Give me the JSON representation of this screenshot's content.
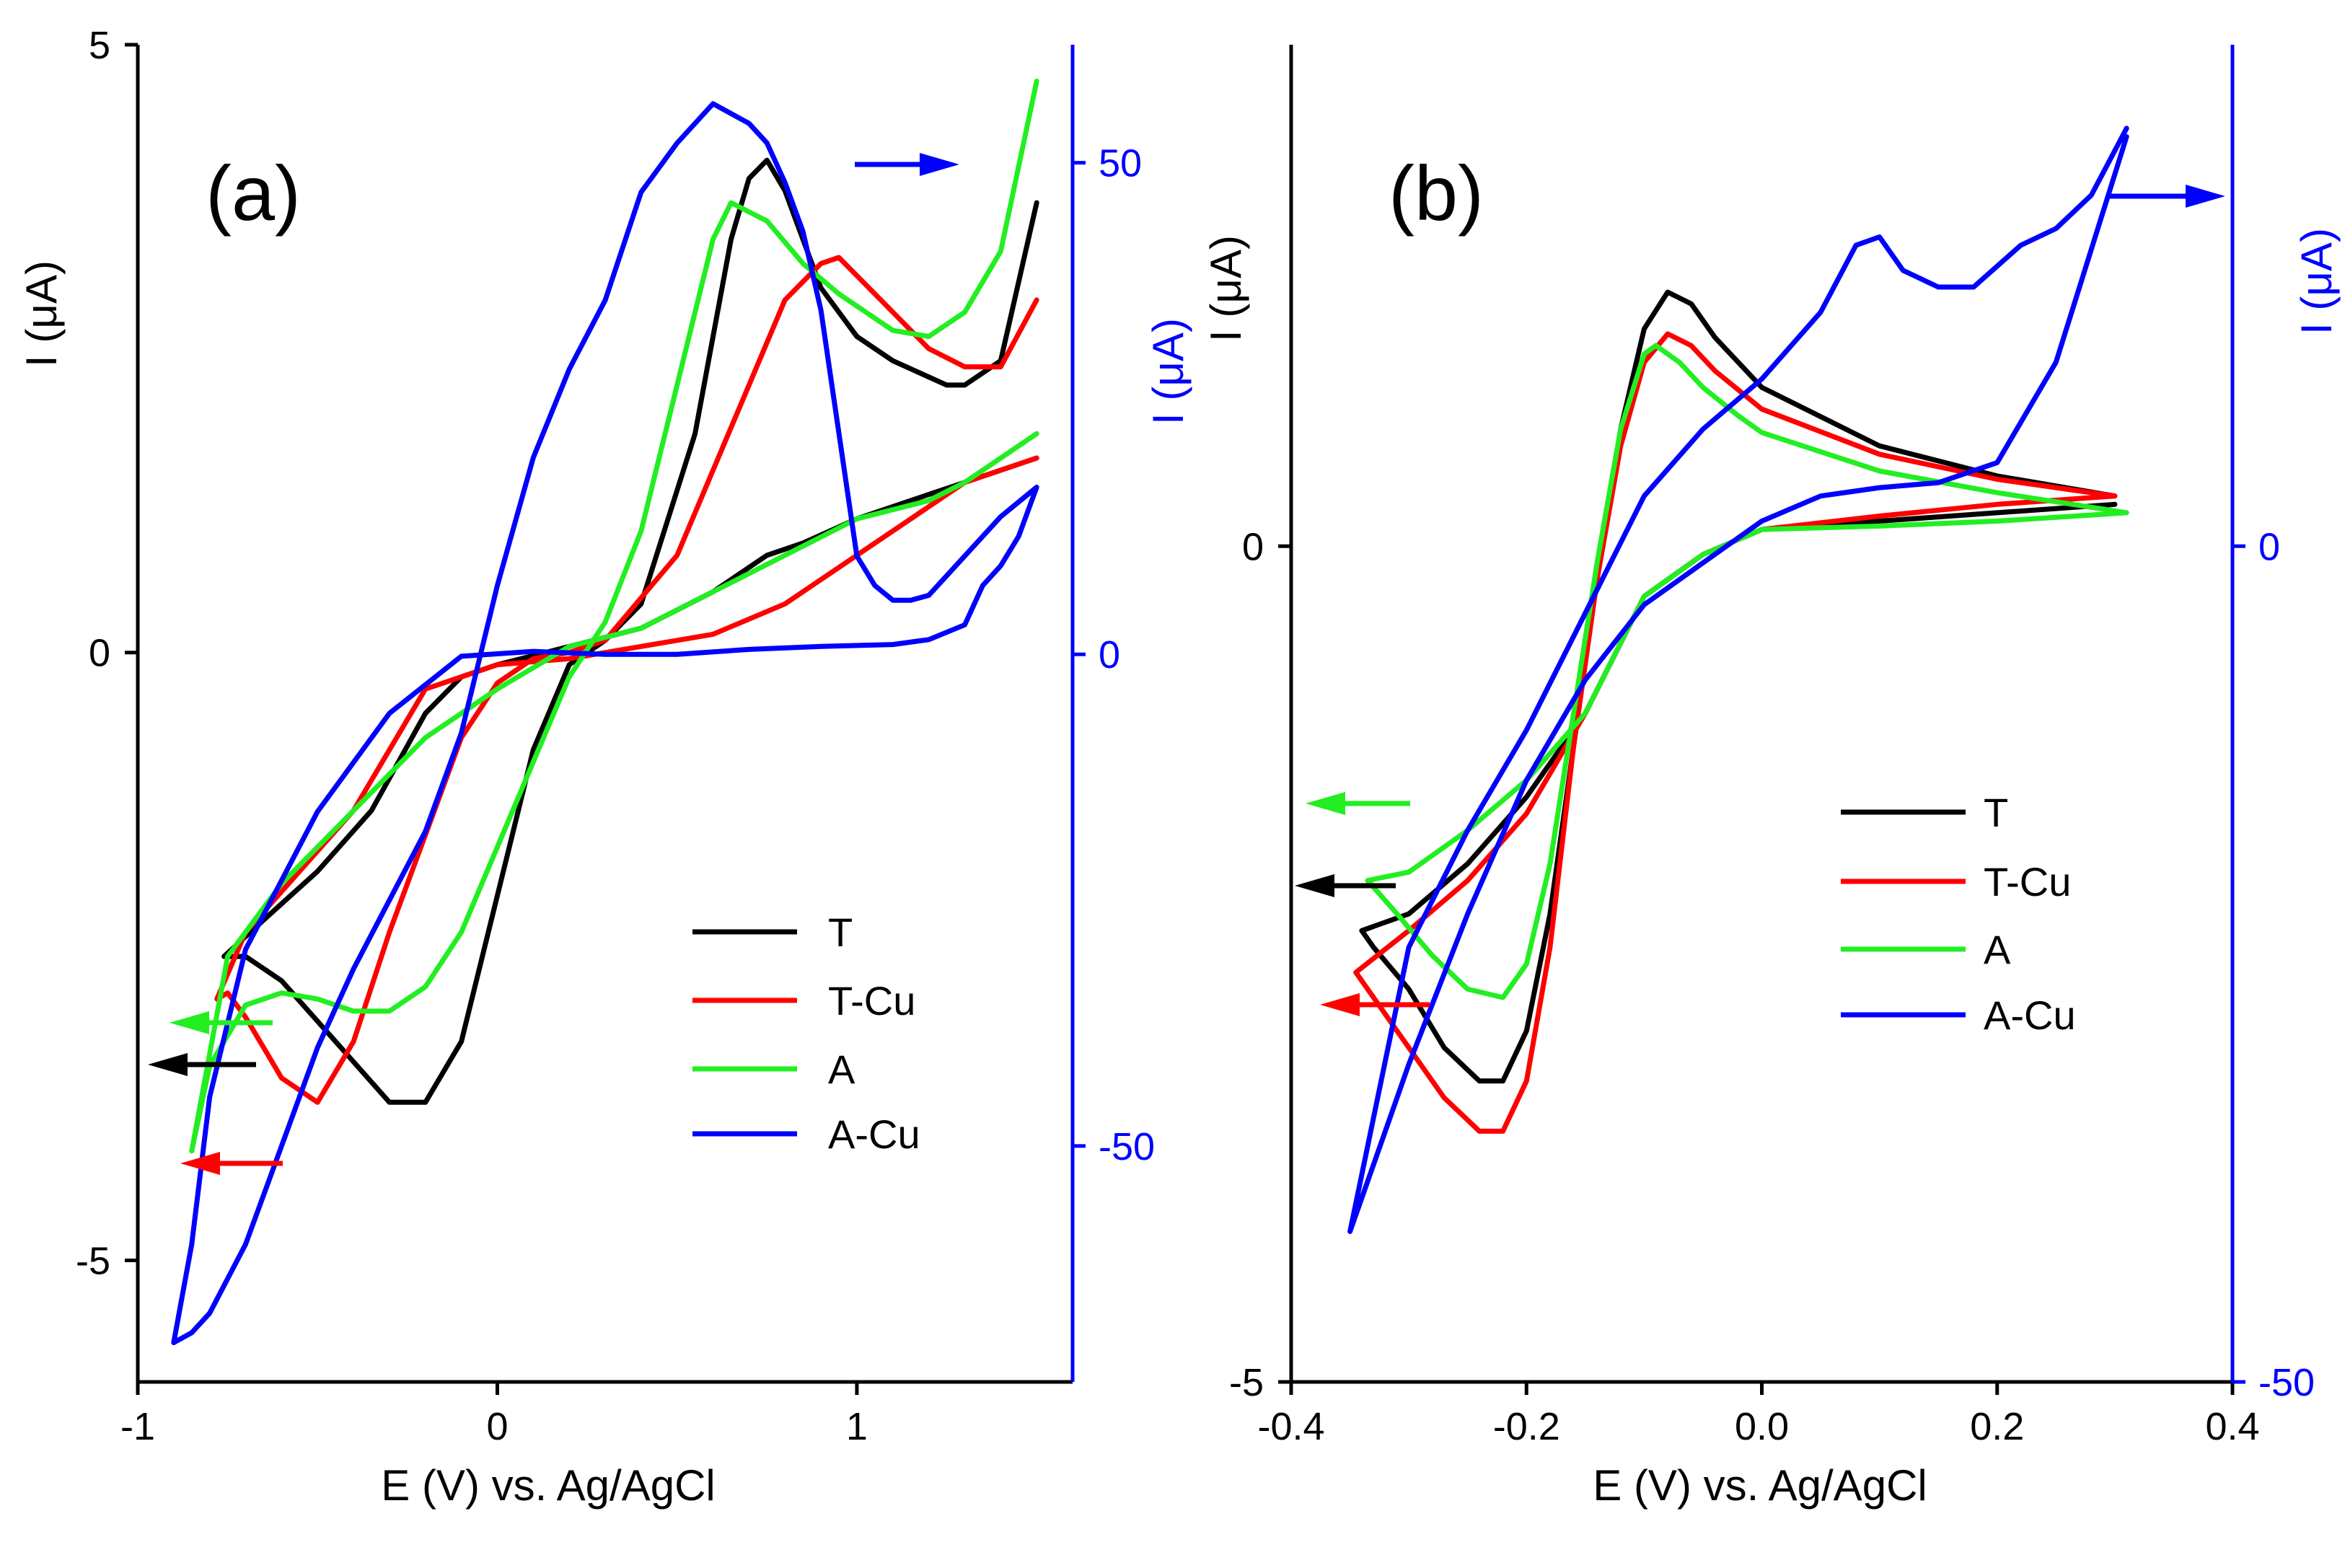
{
  "chart_data": [
    {
      "type": "line",
      "panel_label": "(a)",
      "xlabel": "E (V) vs. Ag/AgCl",
      "ylabel_left": "I (μA)",
      "ylabel_right": "I (μA)",
      "xlim": [
        -1,
        1.6
      ],
      "ylim_left": [
        -6,
        5
      ],
      "ylim_right": [
        -74,
        62
      ],
      "x_ticks": [
        -1,
        0,
        1
      ],
      "x_tick_labels": [
        "-1",
        "0",
        "1"
      ],
      "y_ticks_left": [
        -5,
        0,
        5
      ],
      "y_tick_labels_left": [
        "-5",
        "0",
        "5"
      ],
      "y_ticks_right": [
        -50,
        0,
        50
      ],
      "y_tick_labels_right": [
        "-50",
        "0",
        "50"
      ],
      "legend": [
        "T",
        "T-Cu",
        "A",
        "A-Cu"
      ],
      "series": [
        {
          "name": "T",
          "color": "#000000",
          "axis": "left",
          "x": [
            1.5,
            1.4,
            1.3,
            1.2,
            1.0,
            0.85,
            0.75,
            0.6,
            0.4,
            0.2,
            0.0,
            -0.1,
            -0.2,
            -0.35,
            -0.5,
            -0.65,
            -0.76,
            -0.7,
            -0.6,
            -0.45,
            -0.3,
            -0.2,
            -0.1,
            0.0,
            0.1,
            0.2,
            0.3,
            0.4,
            0.55,
            0.65,
            0.7,
            0.75,
            0.8,
            0.9,
            1.0,
            1.1,
            1.25,
            1.3,
            1.4,
            1.5
          ],
          "y": [
            1.6,
            1.5,
            1.4,
            1.3,
            1.1,
            0.9,
            0.8,
            0.5,
            0.2,
            0.05,
            -0.1,
            -0.2,
            -0.5,
            -1.3,
            -1.8,
            -2.2,
            -2.5,
            -2.5,
            -2.7,
            -3.2,
            -3.7,
            -3.7,
            -3.2,
            -2.0,
            -0.8,
            -0.1,
            0.1,
            0.4,
            1.8,
            3.4,
            3.9,
            4.05,
            3.8,
            3.0,
            2.6,
            2.4,
            2.2,
            2.2,
            2.4,
            3.7
          ]
        },
        {
          "name": "T-Cu",
          "color": "#ff0000",
          "axis": "left",
          "x": [
            1.5,
            1.4,
            1.3,
            1.2,
            1.0,
            0.8,
            0.6,
            0.4,
            0.2,
            0.0,
            -0.2,
            -0.4,
            -0.55,
            -0.7,
            -0.78,
            -0.75,
            -0.7,
            -0.6,
            -0.5,
            -0.4,
            -0.3,
            -0.2,
            -0.1,
            0.0,
            0.1,
            0.2,
            0.3,
            0.5,
            0.7,
            0.8,
            0.9,
            0.95,
            1.0,
            1.1,
            1.2,
            1.3,
            1.4,
            1.5
          ],
          "y": [
            1.6,
            1.5,
            1.4,
            1.2,
            0.8,
            0.4,
            0.15,
            0.05,
            -0.05,
            -0.1,
            -0.3,
            -1.3,
            -1.8,
            -2.3,
            -2.85,
            -2.8,
            -3.0,
            -3.5,
            -3.7,
            -3.2,
            -2.3,
            -1.5,
            -0.7,
            -0.25,
            -0.05,
            0.0,
            0.1,
            0.8,
            2.2,
            2.9,
            3.2,
            3.25,
            3.1,
            2.8,
            2.5,
            2.35,
            2.35,
            2.9
          ]
        },
        {
          "name": "A",
          "color": "#22ee22",
          "axis": "left",
          "x": [
            1.5,
            1.4,
            1.3,
            1.2,
            1.0,
            0.8,
            0.6,
            0.4,
            0.2,
            0.0,
            -0.2,
            -0.4,
            -0.6,
            -0.75,
            -0.85,
            -0.8,
            -0.7,
            -0.6,
            -0.5,
            -0.4,
            -0.3,
            -0.2,
            -0.1,
            0.0,
            0.1,
            0.2,
            0.3,
            0.4,
            0.5,
            0.6,
            0.65,
            0.75,
            0.85,
            0.95,
            1.1,
            1.2,
            1.3,
            1.4,
            1.5
          ],
          "y": [
            1.8,
            1.6,
            1.4,
            1.25,
            1.1,
            0.8,
            0.5,
            0.2,
            0.05,
            -0.3,
            -0.7,
            -1.3,
            -1.9,
            -2.5,
            -4.1,
            -3.4,
            -2.9,
            -2.8,
            -2.85,
            -2.95,
            -2.95,
            -2.75,
            -2.3,
            -1.6,
            -0.9,
            -0.2,
            0.25,
            1.0,
            2.2,
            3.4,
            3.7,
            3.55,
            3.2,
            2.95,
            2.65,
            2.6,
            2.8,
            3.3,
            4.7
          ]
        },
        {
          "name": "A-Cu",
          "color": "#0000ff",
          "axis": "right",
          "x": [
            1.5,
            1.45,
            1.4,
            1.35,
            1.3,
            1.2,
            1.1,
            0.9,
            0.7,
            0.5,
            0.3,
            0.1,
            -0.1,
            -0.3,
            -0.5,
            -0.7,
            -0.8,
            -0.85,
            -0.9,
            -0.85,
            -0.8,
            -0.7,
            -0.6,
            -0.5,
            -0.4,
            -0.3,
            -0.2,
            -0.1,
            0.0,
            0.1,
            0.2,
            0.3,
            0.4,
            0.5,
            0.6,
            0.7,
            0.75,
            0.8,
            0.85,
            0.9,
            1.0,
            1.05,
            1.1,
            1.15,
            1.2,
            1.3,
            1.4,
            1.5
          ],
          "y": [
            17,
            12,
            9,
            7,
            3,
            1.5,
            1,
            0.8,
            0.5,
            0,
            0,
            0.3,
            -0.2,
            -6,
            -16,
            -30,
            -45,
            -60,
            -70,
            -69,
            -67,
            -60,
            -50,
            -40,
            -32,
            -25,
            -18,
            -8,
            7,
            20,
            29,
            36,
            47,
            52,
            56,
            54,
            52,
            48,
            43,
            35,
            10,
            7,
            5.5,
            5.5,
            6,
            10,
            14,
            17
          ]
        }
      ]
    },
    {
      "type": "line",
      "panel_label": "(b)",
      "xlabel": "E (V) vs. Ag/AgCl",
      "ylabel_left": "I (μA)",
      "ylabel_right": "I (μA)",
      "xlim": [
        -0.4,
        0.4
      ],
      "ylim_left": [
        -5,
        3
      ],
      "ylim_right": [
        -50,
        30
      ],
      "x_ticks": [
        -0.4,
        -0.2,
        0.0,
        0.2,
        0.4
      ],
      "x_tick_labels": [
        "-0.4",
        "-0.2",
        "0.0",
        "0.2",
        "0.4"
      ],
      "y_ticks_left": [
        -5,
        0
      ],
      "y_tick_labels_left": [
        "-5",
        "0"
      ],
      "y_ticks_right": [
        -50,
        0
      ],
      "y_tick_labels_right": [
        "-50",
        "0"
      ],
      "legend": [
        "T",
        "T-Cu",
        "A",
        "A-Cu"
      ],
      "series": [
        {
          "name": "T",
          "color": "#000000",
          "axis": "left",
          "x": [
            0.3,
            0.2,
            0.1,
            0.0,
            -0.05,
            -0.1,
            -0.15,
            -0.2,
            -0.25,
            -0.3,
            -0.34,
            -0.33,
            -0.3,
            -0.27,
            -0.24,
            -0.22,
            -0.2,
            -0.18,
            -0.16,
            -0.14,
            -0.12,
            -0.1,
            -0.08,
            -0.06,
            -0.04,
            0.0,
            0.1,
            0.2,
            0.3
          ],
          "y": [
            0.25,
            0.2,
            0.15,
            0.1,
            -0.05,
            -0.3,
            -1.0,
            -1.5,
            -1.9,
            -2.2,
            -2.3,
            -2.4,
            -2.65,
            -3.0,
            -3.2,
            -3.2,
            -2.9,
            -2.2,
            -1.2,
            -0.2,
            0.7,
            1.3,
            1.52,
            1.45,
            1.25,
            0.95,
            0.6,
            0.42,
            0.3
          ]
        },
        {
          "name": "T-Cu",
          "color": "#ff0000",
          "axis": "left",
          "x": [
            0.3,
            0.2,
            0.1,
            0.0,
            -0.05,
            -0.1,
            -0.15,
            -0.2,
            -0.25,
            -0.3,
            -0.345,
            -0.33,
            -0.3,
            -0.27,
            -0.24,
            -0.22,
            -0.2,
            -0.18,
            -0.16,
            -0.14,
            -0.12,
            -0.1,
            -0.08,
            -0.06,
            -0.04,
            0.0,
            0.1,
            0.2,
            0.3
          ],
          "y": [
            0.3,
            0.25,
            0.18,
            0.1,
            -0.05,
            -0.3,
            -1.0,
            -1.6,
            -2.0,
            -2.3,
            -2.55,
            -2.7,
            -3.0,
            -3.3,
            -3.5,
            -3.5,
            -3.2,
            -2.4,
            -1.2,
            -0.2,
            0.6,
            1.1,
            1.27,
            1.2,
            1.05,
            0.82,
            0.55,
            0.4,
            0.3
          ]
        },
        {
          "name": "A",
          "color": "#22ee22",
          "axis": "left",
          "x": [
            0.31,
            0.2,
            0.1,
            0.0,
            -0.05,
            -0.1,
            -0.15,
            -0.2,
            -0.25,
            -0.3,
            -0.335,
            -0.31,
            -0.28,
            -0.25,
            -0.22,
            -0.2,
            -0.18,
            -0.16,
            -0.14,
            -0.12,
            -0.1,
            -0.09,
            -0.07,
            -0.05,
            -0.02,
            0.0,
            0.1,
            0.2,
            0.31
          ],
          "y": [
            0.2,
            0.15,
            0.12,
            0.1,
            -0.05,
            -0.3,
            -1.0,
            -1.4,
            -1.7,
            -1.95,
            -2.0,
            -2.2,
            -2.45,
            -2.65,
            -2.7,
            -2.5,
            -1.9,
            -1.0,
            -0.1,
            0.7,
            1.15,
            1.2,
            1.1,
            0.95,
            0.78,
            0.68,
            0.45,
            0.32,
            0.2
          ]
        },
        {
          "name": "A-Cu",
          "color": "#0000ff",
          "axis": "right",
          "x": [
            0.31,
            0.28,
            0.25,
            0.22,
            0.18,
            0.15,
            0.12,
            0.1,
            0.08,
            0.05,
            0.0,
            -0.05,
            -0.1,
            -0.15,
            -0.2,
            -0.25,
            -0.3,
            -0.35,
            -0.3,
            -0.25,
            -0.2,
            -0.15,
            -0.1,
            -0.05,
            0.0,
            0.05,
            0.1,
            0.15,
            0.2,
            0.25,
            0.31
          ],
          "y": [
            25,
            21,
            19,
            18,
            15.5,
            15.5,
            16.5,
            18.5,
            18,
            14,
            10,
            7,
            3,
            -4,
            -11,
            -17,
            -24,
            -41,
            -31,
            -22,
            -14,
            -8,
            -3.5,
            -1,
            1.5,
            3,
            3.5,
            3.8,
            5,
            11,
            24.5
          ]
        }
      ]
    }
  ]
}
